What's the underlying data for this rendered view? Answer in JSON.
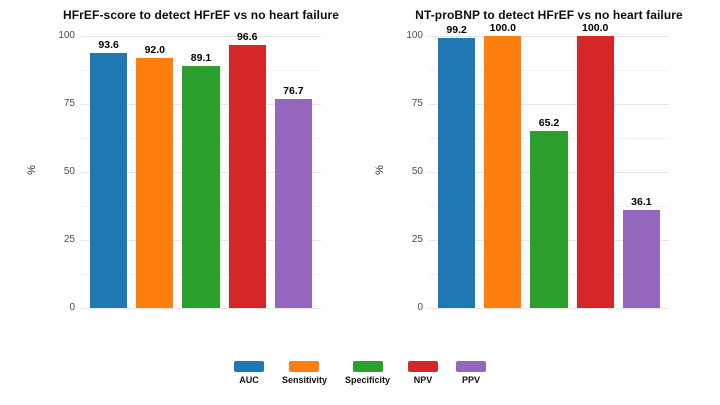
{
  "chart_data": [
    {
      "type": "bar",
      "title": "HFrEF-score to detect HFrEF vs no heart failure",
      "ylabel": "%",
      "ylim": [
        0,
        100
      ],
      "yticks": [
        0,
        25,
        50,
        75,
        100
      ],
      "grid": "on",
      "categories": [
        "AUC",
        "Sensitivity",
        "Specificity",
        "NPV",
        "PPV"
      ],
      "values": [
        93.6,
        92.0,
        89.1,
        96.6,
        76.7
      ],
      "value_labels": [
        "93.6",
        "92.0",
        "89.1",
        "96.6",
        "76.7"
      ]
    },
    {
      "type": "bar",
      "title": "NT-proBNP to detect HFrEF vs no heart failure",
      "ylabel": "%",
      "ylim": [
        0,
        100
      ],
      "yticks": [
        0,
        25,
        50,
        75,
        100
      ],
      "grid": "on",
      "categories": [
        "AUC",
        "Sensitivity",
        "Specificity",
        "NPV",
        "PPV"
      ],
      "values": [
        99.2,
        100.0,
        65.2,
        100.0,
        36.1
      ],
      "value_labels": [
        "99.2",
        "100.0",
        "65.2",
        "100.0",
        "36.1"
      ]
    }
  ],
  "colors": {
    "AUC": "#1f77b4",
    "Sensitivity": "#ff7f0e",
    "Specificity": "#2ca02c",
    "NPV": "#d62728",
    "PPV": "#9467bd"
  },
  "legend": {
    "position": "bottom",
    "items": [
      {
        "label": "AUC",
        "color": "#1f77b4"
      },
      {
        "label": "Sensitivity",
        "color": "#ff7f0e"
      },
      {
        "label": "Specificity",
        "color": "#2ca02c"
      },
      {
        "label": "NPV",
        "color": "#d62728"
      },
      {
        "label": "PPV",
        "color": "#9467bd"
      }
    ]
  }
}
